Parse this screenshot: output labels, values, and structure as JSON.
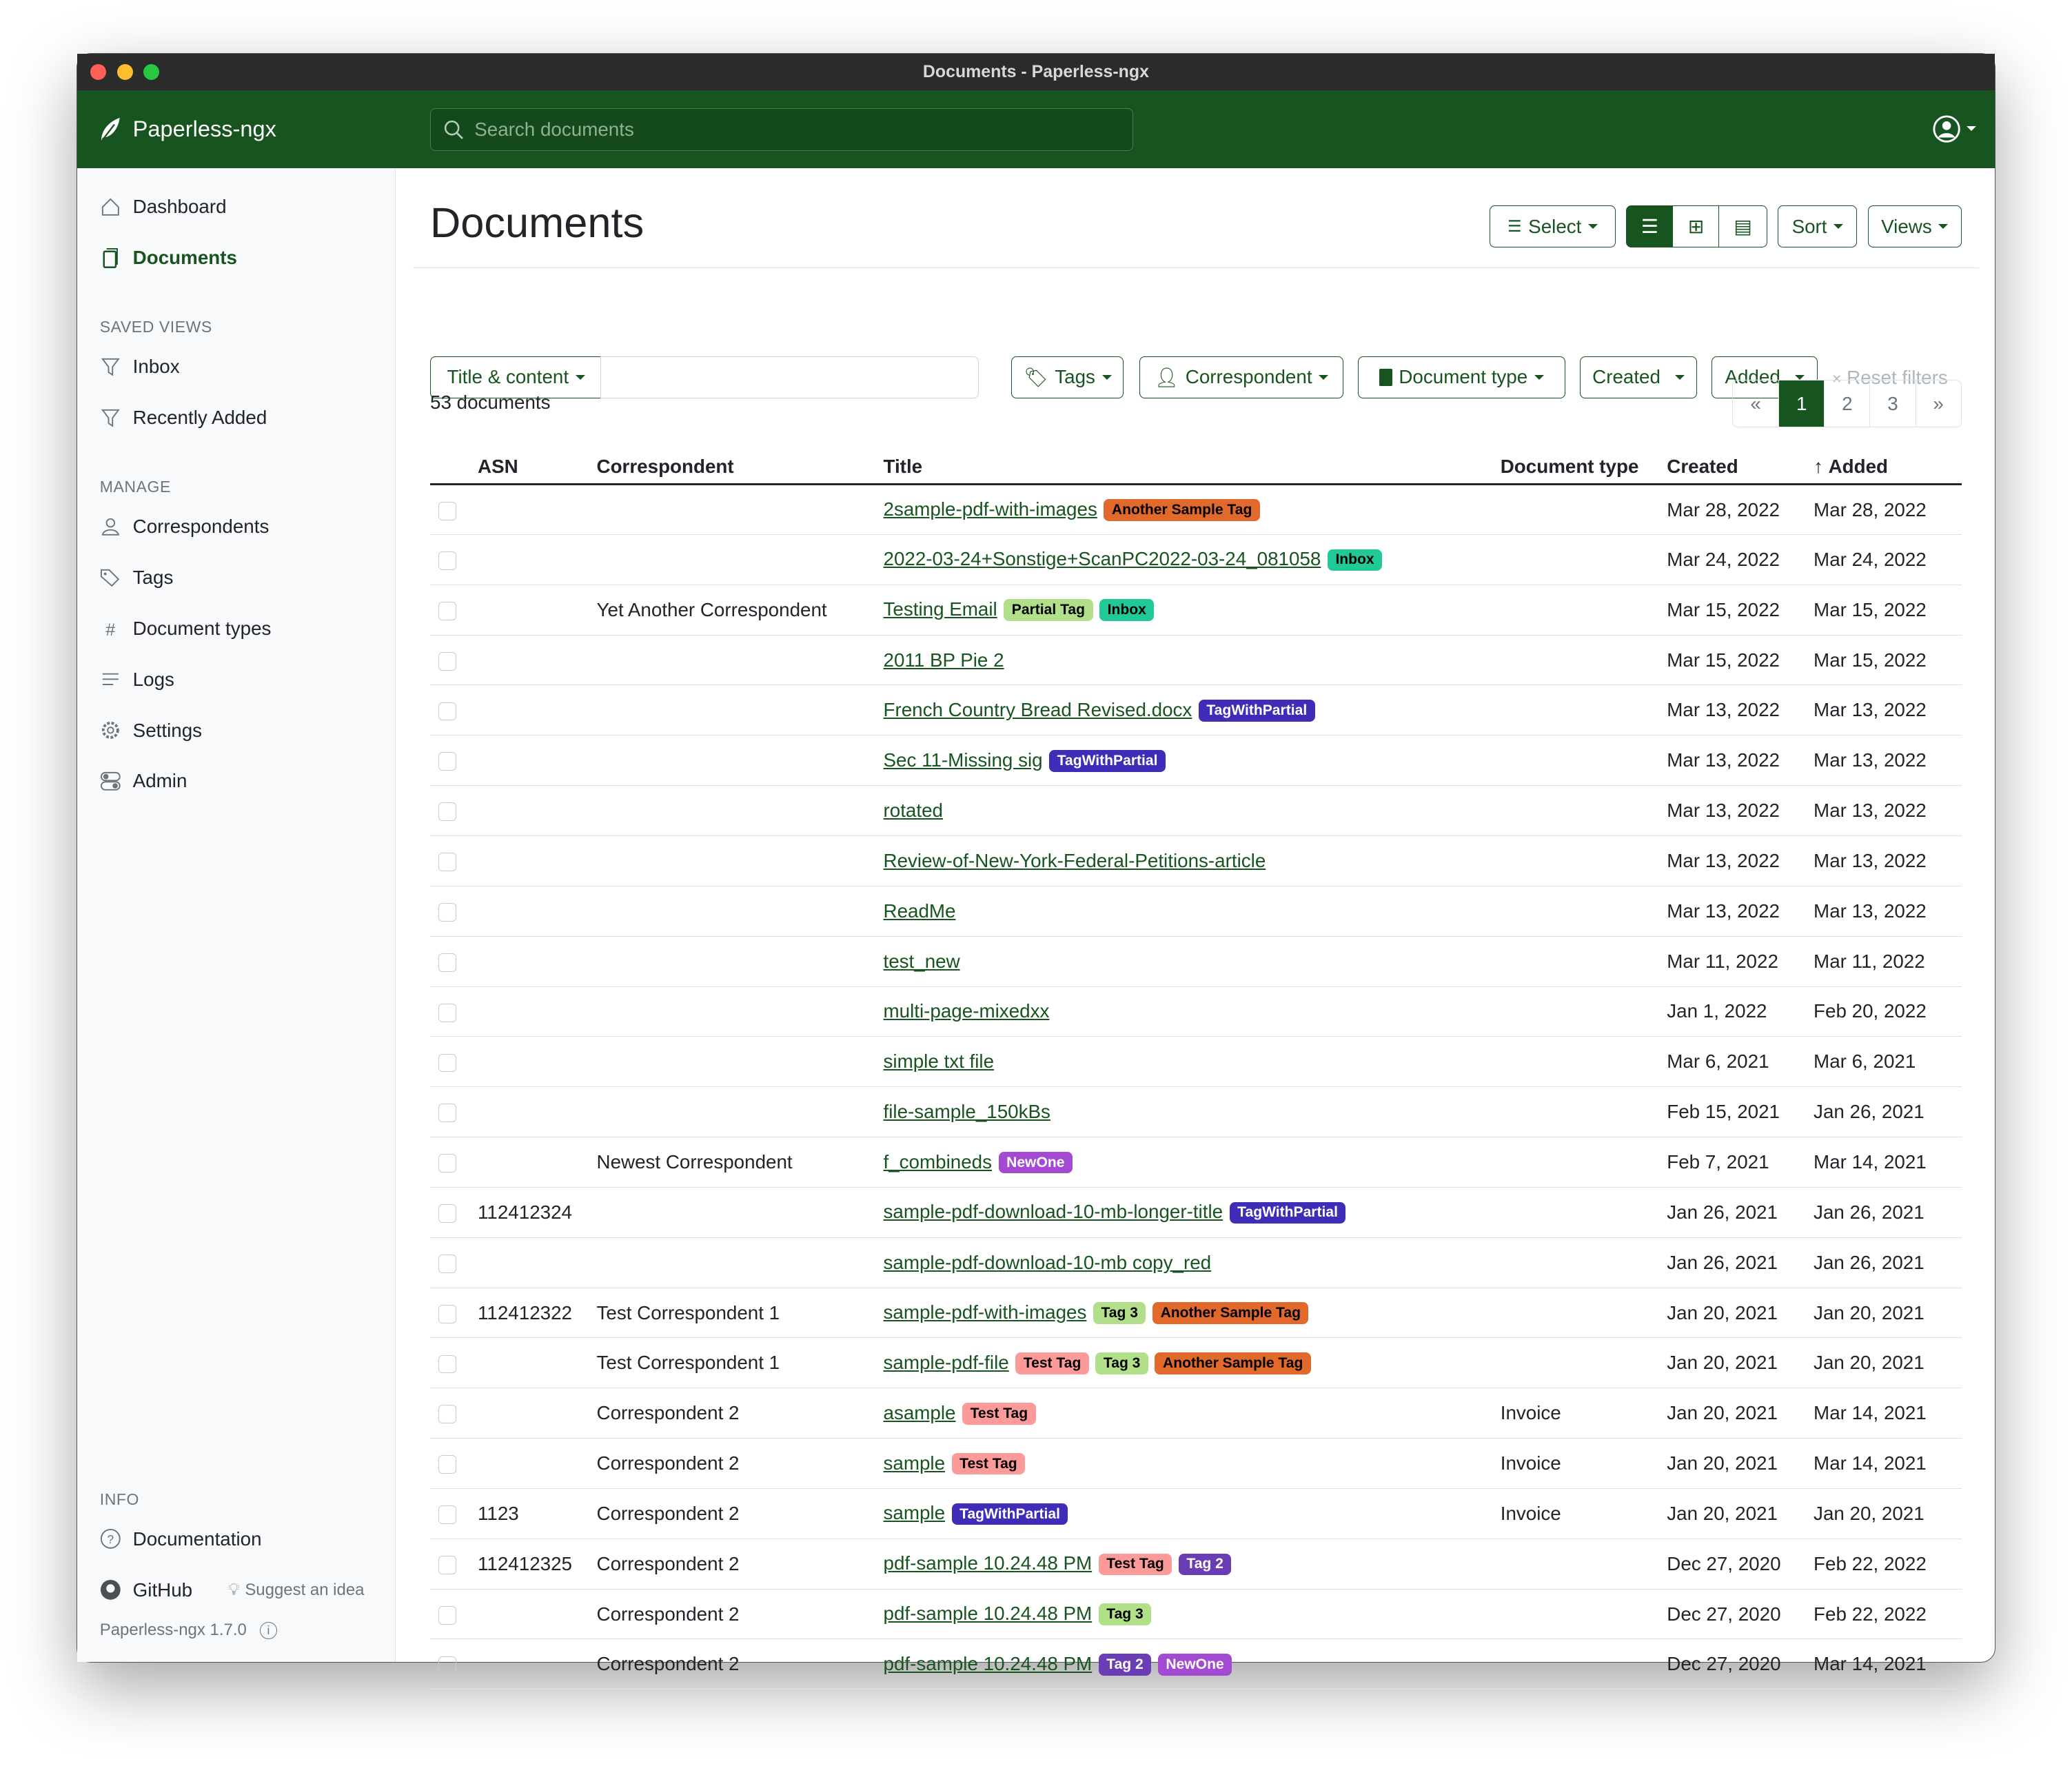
{
  "window_title": "Documents - Paperless-ngx",
  "brand": "Paperless-ngx",
  "search_placeholder": "Search documents",
  "colors": {
    "primary": "#17541f"
  },
  "sidebar": {
    "main": [
      {
        "label": "Dashboard",
        "icon": "house-icon"
      },
      {
        "label": "Documents",
        "icon": "files-icon",
        "active": true
      }
    ],
    "saved_views_heading": "SAVED VIEWS",
    "saved_views": [
      {
        "label": "Inbox",
        "icon": "funnel-icon"
      },
      {
        "label": "Recently Added",
        "icon": "funnel-icon"
      }
    ],
    "manage_heading": "MANAGE",
    "manage": [
      {
        "label": "Correspondents",
        "icon": "person-icon"
      },
      {
        "label": "Tags",
        "icon": "tags-icon"
      },
      {
        "label": "Document types",
        "icon": "hash-icon"
      },
      {
        "label": "Logs",
        "icon": "list-icon"
      },
      {
        "label": "Settings",
        "icon": "gear-icon"
      },
      {
        "label": "Admin",
        "icon": "toggles-icon"
      }
    ],
    "info_heading": "INFO",
    "documentation": "Documentation",
    "github": "GitHub",
    "suggest": "Suggest an idea",
    "version": "Paperless-ngx 1.7.0"
  },
  "page_title": "Documents",
  "toolbar": {
    "select": "Select",
    "sort": "Sort",
    "views": "Views"
  },
  "filters": {
    "title_content": "Title & content",
    "search_value": "",
    "tags": "Tags",
    "correspondent": "Correspondent",
    "document_type": "Document type",
    "created": "Created",
    "added": "Added",
    "reset": "Reset filters"
  },
  "count": "53 documents",
  "pager": [
    "«",
    "1",
    "2",
    "3",
    "»"
  ],
  "columns": {
    "asn": "ASN",
    "correspondent": "Correspondent",
    "title": "Title",
    "doctype": "Document type",
    "created": "Created",
    "added": "Added"
  },
  "tag_colors": {
    "Another Sample Tag": [
      "#e0692b",
      "#000"
    ],
    "Inbox": [
      "#20c997",
      "#000"
    ],
    "Partial Tag": [
      "#b2df8a",
      "#000"
    ],
    "TagWithPartial": [
      "#3f2db8",
      "#fff"
    ],
    "NewOne": [
      "#a24ad1",
      "#fff"
    ],
    "Test Tag": [
      "#fb9a99",
      "#000"
    ],
    "Tag 3": [
      "#b2df8a",
      "#000"
    ],
    "Tag 2": [
      "#6a3db5",
      "#fff"
    ]
  },
  "rows": [
    {
      "asn": "",
      "corr": "",
      "title": "2sample-pdf-with-images",
      "tags": [
        "Another Sample Tag"
      ],
      "type": "",
      "created": "Mar 28, 2022",
      "added": "Mar 28, 2022"
    },
    {
      "asn": "",
      "corr": "",
      "title": "2022-03-24+Sonstige+ScanPC2022-03-24_081058",
      "tags": [
        "Inbox"
      ],
      "type": "",
      "created": "Mar 24, 2022",
      "added": "Mar 24, 2022"
    },
    {
      "asn": "",
      "corr": "Yet Another Correspondent",
      "title": "Testing Email",
      "tags": [
        "Partial Tag",
        "Inbox"
      ],
      "type": "",
      "created": "Mar 15, 2022",
      "added": "Mar 15, 2022"
    },
    {
      "asn": "",
      "corr": "",
      "title": "2011 BP Pie 2",
      "tags": [],
      "type": "",
      "created": "Mar 15, 2022",
      "added": "Mar 15, 2022"
    },
    {
      "asn": "",
      "corr": "",
      "title": "French Country Bread Revised.docx",
      "tags": [
        "TagWithPartial"
      ],
      "type": "",
      "created": "Mar 13, 2022",
      "added": "Mar 13, 2022"
    },
    {
      "asn": "",
      "corr": "",
      "title": "Sec 11-Missing sig",
      "tags": [
        "TagWithPartial"
      ],
      "type": "",
      "created": "Mar 13, 2022",
      "added": "Mar 13, 2022"
    },
    {
      "asn": "",
      "corr": "",
      "title": "rotated",
      "tags": [],
      "type": "",
      "created": "Mar 13, 2022",
      "added": "Mar 13, 2022"
    },
    {
      "asn": "",
      "corr": "",
      "title": "Review-of-New-York-Federal-Petitions-article",
      "tags": [],
      "type": "",
      "created": "Mar 13, 2022",
      "added": "Mar 13, 2022"
    },
    {
      "asn": "",
      "corr": "",
      "title": "ReadMe",
      "tags": [],
      "type": "",
      "created": "Mar 13, 2022",
      "added": "Mar 13, 2022"
    },
    {
      "asn": "",
      "corr": "",
      "title": "test_new",
      "tags": [],
      "type": "",
      "created": "Mar 11, 2022",
      "added": "Mar 11, 2022"
    },
    {
      "asn": "",
      "corr": "",
      "title": "multi-page-mixedxx",
      "tags": [],
      "type": "",
      "created": "Jan 1, 2022",
      "added": "Feb 20, 2022"
    },
    {
      "asn": "",
      "corr": "",
      "title": "simple txt file",
      "tags": [],
      "type": "",
      "created": "Mar 6, 2021",
      "added": "Mar 6, 2021"
    },
    {
      "asn": "",
      "corr": "",
      "title": "file-sample_150kBs",
      "tags": [],
      "type": "",
      "created": "Feb 15, 2021",
      "added": "Jan 26, 2021"
    },
    {
      "asn": "",
      "corr": "Newest Correspondent",
      "title": "f_combineds",
      "tags": [
        "NewOne"
      ],
      "type": "",
      "created": "Feb 7, 2021",
      "added": "Mar 14, 2021"
    },
    {
      "asn": "112412324",
      "corr": "",
      "title": "sample-pdf-download-10-mb-longer-title",
      "tags": [
        "TagWithPartial"
      ],
      "type": "",
      "created": "Jan 26, 2021",
      "added": "Jan 26, 2021"
    },
    {
      "asn": "",
      "corr": "",
      "title": "sample-pdf-download-10-mb copy_red",
      "tags": [],
      "type": "",
      "created": "Jan 26, 2021",
      "added": "Jan 26, 2021"
    },
    {
      "asn": "112412322",
      "corr": "Test Correspondent 1",
      "title": "sample-pdf-with-images",
      "tags": [
        "Tag 3",
        "Another Sample Tag"
      ],
      "type": "",
      "created": "Jan 20, 2021",
      "added": "Jan 20, 2021"
    },
    {
      "asn": "",
      "corr": "Test Correspondent 1",
      "title": "sample-pdf-file",
      "tags": [
        "Test Tag",
        "Tag 3",
        "Another Sample Tag"
      ],
      "type": "",
      "created": "Jan 20, 2021",
      "added": "Jan 20, 2021"
    },
    {
      "asn": "",
      "corr": "Correspondent 2",
      "title": "asample",
      "tags": [
        "Test Tag"
      ],
      "type": "Invoice",
      "created": "Jan 20, 2021",
      "added": "Mar 14, 2021"
    },
    {
      "asn": "",
      "corr": "Correspondent 2",
      "title": "sample",
      "tags": [
        "Test Tag"
      ],
      "type": "Invoice",
      "created": "Jan 20, 2021",
      "added": "Mar 14, 2021"
    },
    {
      "asn": "1123",
      "corr": "Correspondent 2",
      "title": "sample",
      "tags": [
        "TagWithPartial"
      ],
      "type": "Invoice",
      "created": "Jan 20, 2021",
      "added": "Jan 20, 2021"
    },
    {
      "asn": "112412325",
      "corr": "Correspondent 2",
      "title": "pdf-sample 10.24.48 PM",
      "tags": [
        "Test Tag",
        "Tag 2"
      ],
      "type": "",
      "created": "Dec 27, 2020",
      "added": "Feb 22, 2022"
    },
    {
      "asn": "",
      "corr": "Correspondent 2",
      "title": "pdf-sample 10.24.48 PM",
      "tags": [
        "Tag 3"
      ],
      "type": "",
      "created": "Dec 27, 2020",
      "added": "Feb 22, 2022"
    },
    {
      "asn": "",
      "corr": "Correspondent 2",
      "title": "pdf-sample 10.24.48 PM",
      "tags": [
        "Tag 2",
        "NewOne"
      ],
      "type": "",
      "created": "Dec 27, 2020",
      "added": "Mar 14, 2021"
    }
  ]
}
